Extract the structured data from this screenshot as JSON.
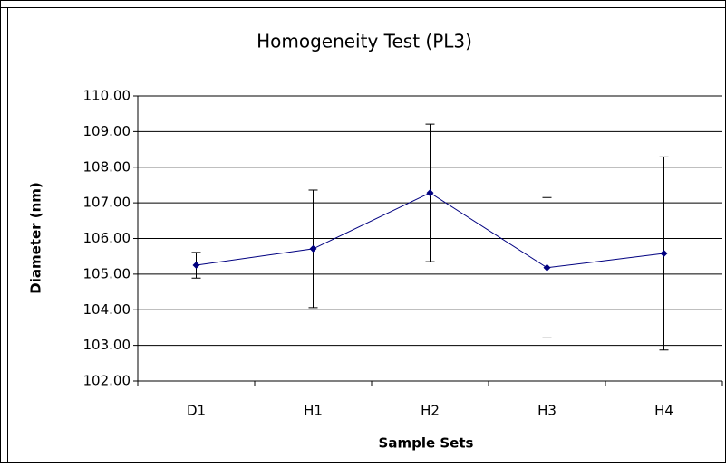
{
  "chart_data": {
    "type": "line",
    "title": "Homogeneity Test (PL3)",
    "xlabel": "Sample Sets",
    "ylabel": "Diameter (nm)",
    "categories": [
      "D1",
      "H1",
      "H2",
      "H3",
      "H4"
    ],
    "values": [
      105.25,
      105.71,
      107.28,
      105.18,
      105.58
    ],
    "errors": [
      0.36,
      1.65,
      1.93,
      1.97,
      2.71
    ],
    "color": "#000080",
    "ylim": [
      102,
      110
    ],
    "yticks": [
      {
        "value": 102,
        "label": "102.00"
      },
      {
        "value": 103,
        "label": "103.00"
      },
      {
        "value": 104,
        "label": "104.00"
      },
      {
        "value": 105,
        "label": "105.00"
      },
      {
        "value": 106,
        "label": "106.00"
      },
      {
        "value": 107,
        "label": "107.00"
      },
      {
        "value": 108,
        "label": "108.00"
      },
      {
        "value": 109,
        "label": "109.00"
      },
      {
        "value": 110,
        "label": "110.00"
      }
    ],
    "grid": true
  }
}
